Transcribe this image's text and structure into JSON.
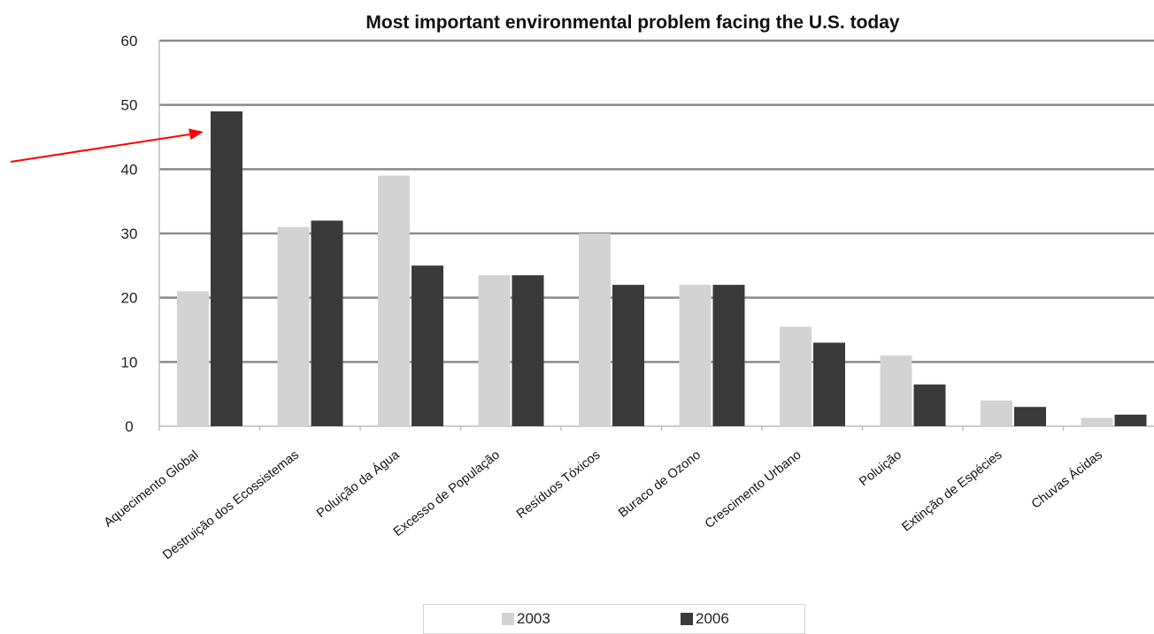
{
  "chart_data": {
    "type": "bar",
    "title": "Most important environmental problem facing the U.S. today",
    "categories": [
      "Aquecimento Global",
      "Destruição dos Ecossistemas",
      "Poluição da Água",
      "Excesso de População",
      "Resíduos Tóxicos",
      "Buraco de Ozono",
      "Crescimento Urbano",
      "Poluição",
      "Extinção de Espécies",
      "Chuvas Ácidas"
    ],
    "series": [
      {
        "name": "2003",
        "color": "#d3d3d3",
        "values": [
          21,
          31,
          39,
          23.5,
          30,
          22,
          15.5,
          11,
          4,
          1.3
        ]
      },
      {
        "name": "2006",
        "color": "#3a3a3a",
        "values": [
          49,
          32,
          25,
          23.5,
          22,
          22,
          13,
          6.5,
          3,
          1.8
        ]
      }
    ],
    "yticks": [
      0,
      10,
      20,
      30,
      40,
      50,
      60
    ],
    "ylim": [
      0,
      60
    ],
    "grid": true,
    "legend_position": "bottom",
    "annotation": {
      "type": "arrow",
      "color": "#ff0000",
      "target_category": "Aquecimento Global",
      "target_series": "2006"
    }
  }
}
